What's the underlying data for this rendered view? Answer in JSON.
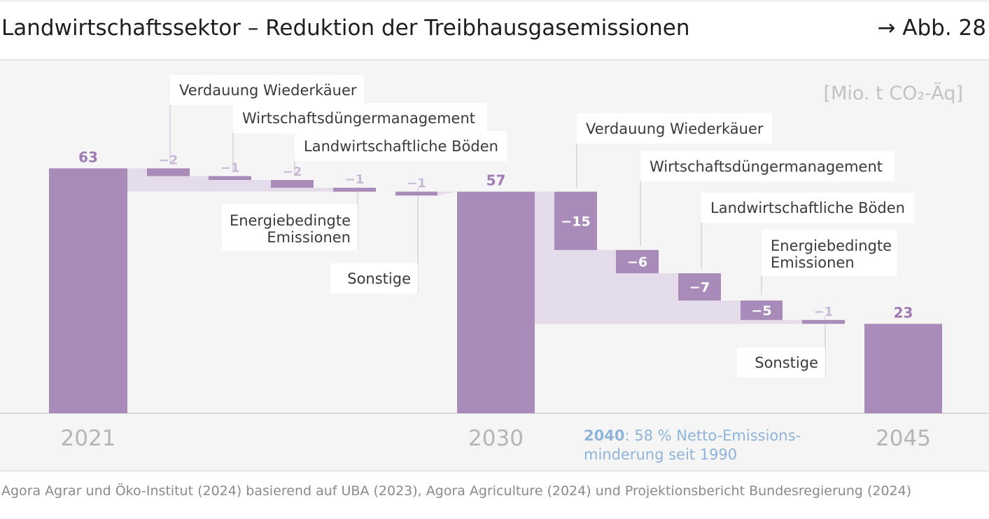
{
  "header": {
    "title": "Landwirtschaftssektor – Reduktion der Treibhausgasemissionen",
    "figure_ref": "→ Abb. 28"
  },
  "source": "Agora Agrar und Öko-Institut (2024) basierend auf UBA (2023), Agora Agriculture (2024) und Projektionsbericht Bundesregierung (2024)",
  "annotation": {
    "year": "2040",
    "line1": ": 58 % Netto-Emissions-",
    "line2": "minderung seit 1990"
  },
  "colors": {
    "bar": "#a98bb9",
    "bridge": "#e4dcea",
    "label_dark": "#a07ab2",
    "label_light": "#c9b8d6",
    "axis_text": "#b5b5b5",
    "accent_blue": "#8fb4da"
  },
  "chart_data": {
    "type": "bar",
    "subtype": "waterfall",
    "unit": "[Mio. t CO₂-Äq]",
    "ylim": [
      0,
      70
    ],
    "grid": false,
    "totals": [
      {
        "year": "2021",
        "value": 63,
        "label": "63"
      },
      {
        "year": "2030",
        "value": 57,
        "label": "57"
      },
      {
        "year": "2045",
        "value": 23,
        "label": "23"
      }
    ],
    "steps": [
      {
        "period": "2021-2030",
        "category": "Verdauung Wiederkäuer",
        "value": -2,
        "label": "−2"
      },
      {
        "period": "2021-2030",
        "category": "Wirtschaftsdüngermanagement",
        "value": -1,
        "label": "−1"
      },
      {
        "period": "2021-2030",
        "category": "Landwirtschaftliche Böden",
        "value": -2,
        "label": "−2"
      },
      {
        "period": "2021-2030",
        "category": "Energiebedingte Emissionen",
        "value": -1,
        "label": "−1"
      },
      {
        "period": "2021-2030",
        "category": "Sonstige",
        "value": -1,
        "label": "−1"
      },
      {
        "period": "2030-2045",
        "category": "Verdauung Wiederkäuer",
        "value": -15,
        "label": "−15"
      },
      {
        "period": "2030-2045",
        "category": "Wirtschaftsdüngermanagement",
        "value": -6,
        "label": "−6"
      },
      {
        "period": "2030-2045",
        "category": "Landwirtschaftliche Böden",
        "value": -7,
        "label": "−7"
      },
      {
        "period": "2030-2045",
        "category": "Energiebedingte Emissionen",
        "value": -5,
        "label": "−5"
      },
      {
        "period": "2030-2045",
        "category": "Sonstige",
        "value": -1,
        "label": "−1"
      }
    ],
    "category_labels": [
      {
        "text": "Verdauung Wiederkäuer"
      },
      {
        "text": "Wirtschaftsdüngermanagement"
      },
      {
        "text": "Landwirtschaftliche Böden"
      },
      {
        "text": "Energiebedingte Emissionen"
      },
      {
        "text": "Sonstige"
      },
      {
        "text": "Verdauung Wiederkäuer"
      },
      {
        "text": "Wirtschaftsdüngermanagement"
      },
      {
        "text": "Landwirtschaftliche Böden"
      },
      {
        "text": "Energiebedingte Emissionen"
      },
      {
        "text": "Sonstige"
      }
    ]
  }
}
